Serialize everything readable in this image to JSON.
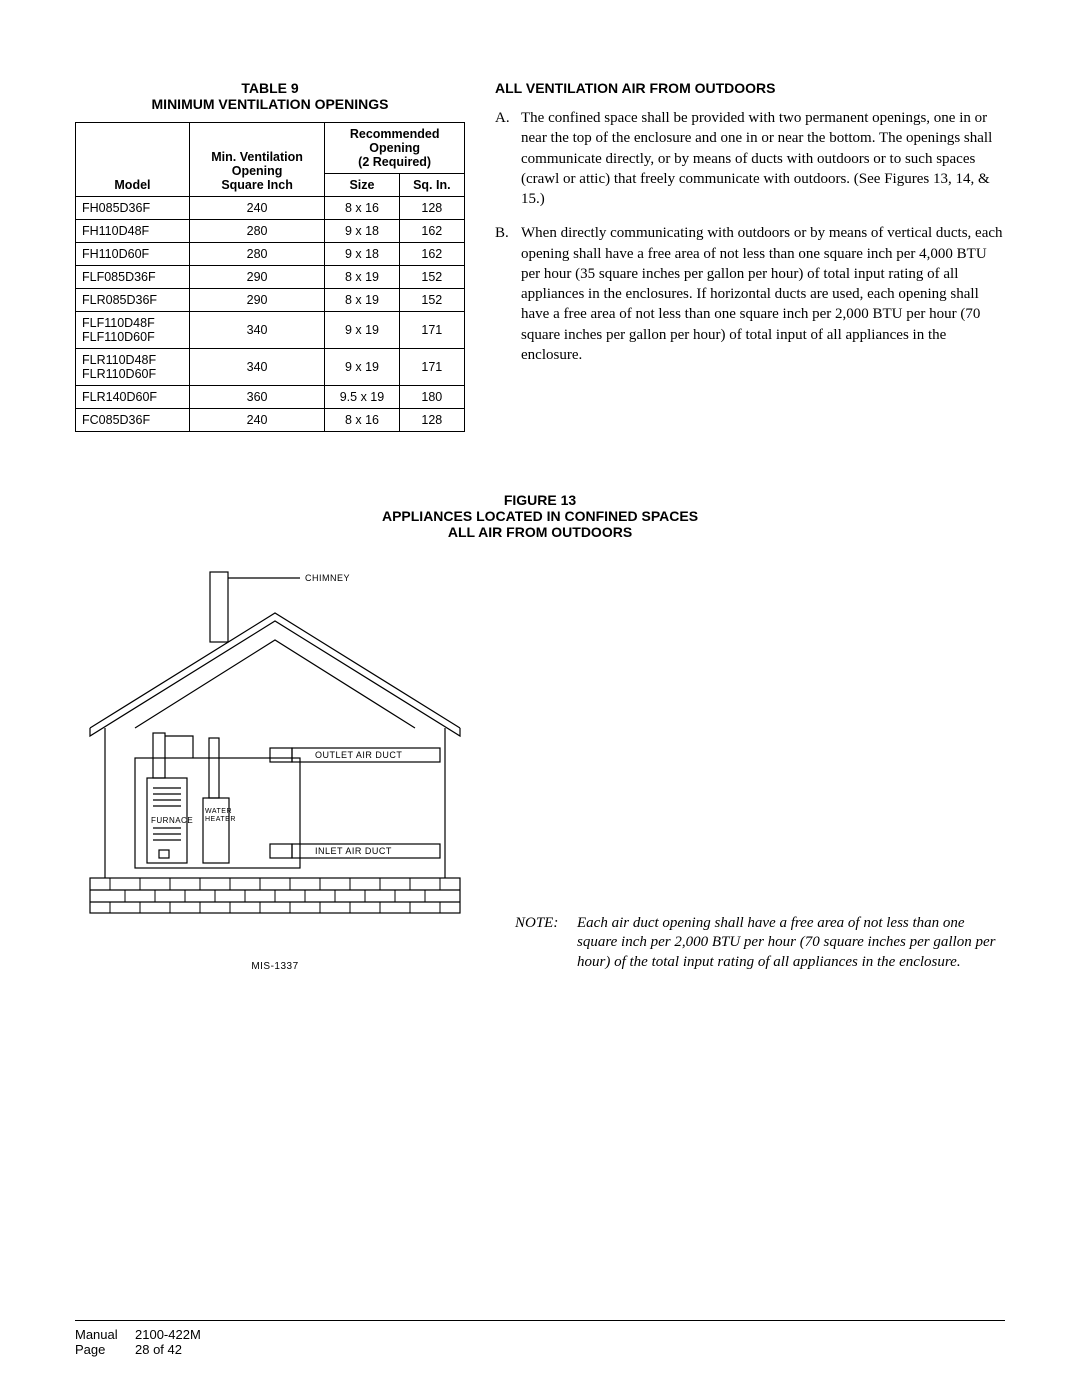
{
  "table9": {
    "title_line1": "TABLE  9",
    "title_line2": "MINIMUM VENTILATION OPENINGS",
    "head_model": "Model",
    "head_min_line1": "Min. Ventilation",
    "head_min_line2": "Opening",
    "head_min_line3": "Square Inch",
    "head_rec_line1": "Recommended",
    "head_rec_line2": "Opening",
    "head_rec_line3": "(2 Required)",
    "head_size": "Size",
    "head_sqin": "Sq. In.",
    "rows": [
      {
        "model": "FH085D36F",
        "min": "240",
        "size": "8 x 16",
        "sqin": "128"
      },
      {
        "model": "FH110D48F",
        "min": "280",
        "size": "9 x 18",
        "sqin": "162"
      },
      {
        "model": "FH110D60F",
        "min": "280",
        "size": "9 x 18",
        "sqin": "162"
      },
      {
        "model": "FLF085D36F",
        "min": "290",
        "size": "8 x 19",
        "sqin": "152"
      },
      {
        "model": "FLR085D36F",
        "min": "290",
        "size": "8 x 19",
        "sqin": "152"
      },
      {
        "model": "FLF110D48F FLF110D60F",
        "min": "340",
        "size": "9 x 19",
        "sqin": "171"
      },
      {
        "model": "FLR110D48F FLR110D60F",
        "min": "340",
        "size": "9 x 19",
        "sqin": "171"
      },
      {
        "model": "FLR140D60F",
        "min": "360",
        "size": "9.5 x 19",
        "sqin": "180"
      },
      {
        "model": "FC085D36F",
        "min": "240",
        "size": "8 x 16",
        "sqin": "128"
      }
    ]
  },
  "section_outdoors": {
    "heading": "ALL VENTILATION AIR FROM OUTDOORS",
    "items": [
      {
        "marker": "A.",
        "text": "The confined space shall be provided with two permanent openings, one in or near the top of the enclosure and one in or near the bottom.  The openings shall communicate directly, or by means of ducts with outdoors or to such spaces (crawl or attic) that freely communicate with outdoors.  (See Figures 13, 14, & 15.)"
      },
      {
        "marker": "B.",
        "text": "When directly communicating with outdoors or by means of vertical ducts, each opening shall have a free area of not less than one square inch per 4,000 BTU per hour (35 square inches per gallon per hour) of total input rating of all appliances in the enclosures.  If horizontal ducts are used, each opening shall have a free area of not less than one square inch per 2,000 BTU per hour (70 square inches per gallon per hour) of total input of all appliances in the enclosure."
      }
    ]
  },
  "figure13": {
    "title_line1": "FIGURE  13",
    "title_line2": "APPLIANCES LOCATED IN CONFINED SPACES",
    "title_line3": "ALL AIR FROM OUTDOORS",
    "labels": {
      "chimney": "CHIMNEY",
      "outlet": "OUTLET AIR DUCT",
      "inlet": "INLET AIR DUCT",
      "furnace": "FURNACE",
      "water_heater": "WATER HEATER"
    },
    "note_label": "NOTE:",
    "note_body": "Each air duct opening shall have a free area of not less than one square inch per 2,000 BTU per hour (70 square inches per gallon per hour) of the total input rating of all appliances in the enclosure.",
    "mis": "MIS-1337"
  },
  "footer": {
    "manual_label": "Manual",
    "manual_value": "2100-422M",
    "page_label": "Page",
    "page_value": "28 of 42"
  },
  "colors": {
    "stroke": "#000000",
    "bg": "#ffffff"
  }
}
